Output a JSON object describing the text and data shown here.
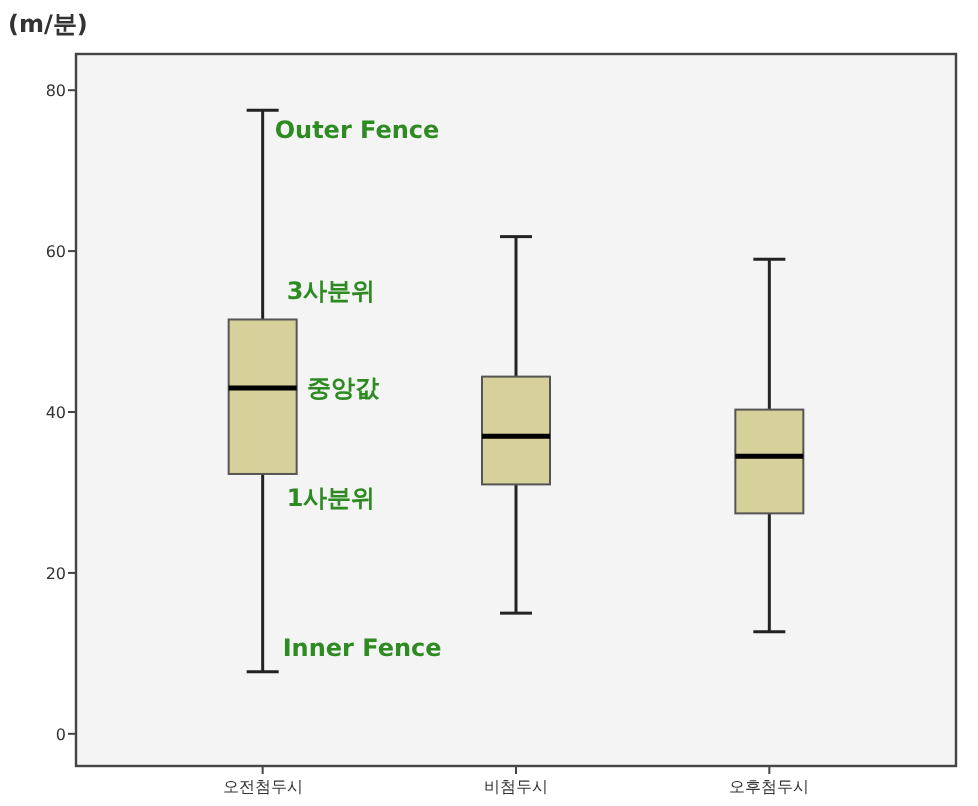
{
  "chart_data": {
    "type": "box",
    "ylabel": "(m/분)",
    "categories": [
      "오전첨두시",
      "비첨두시",
      "오후첨두시"
    ],
    "boxes": [
      {
        "low": 7.7,
        "q1": 32.3,
        "median": 43,
        "q3": 51.5,
        "high": 77.5
      },
      {
        "low": 15,
        "q1": 31,
        "median": 37,
        "q3": 44.4,
        "high": 61.8
      },
      {
        "low": 12.7,
        "q1": 27.4,
        "median": 34.5,
        "q3": 40.3,
        "high": 59
      }
    ],
    "color": "#d6d09a",
    "ylim": [
      -4,
      84.5
    ],
    "yticks": [
      0,
      20,
      40,
      60,
      80
    ],
    "grid": false,
    "annotations": [
      {
        "text": "Outer Fence",
        "x": "오전첨두시",
        "y": 77.5
      },
      {
        "text": "3사분위",
        "x": "오전첨두시",
        "y": 51.5
      },
      {
        "text": "중앙값",
        "x": "오전첨두시",
        "y": 43
      },
      {
        "text": "1사분위",
        "x": "오전첨두시",
        "y": 32.3
      },
      {
        "text": "Inner Fence",
        "x": "오전첨두시",
        "y": 7.7
      }
    ]
  }
}
